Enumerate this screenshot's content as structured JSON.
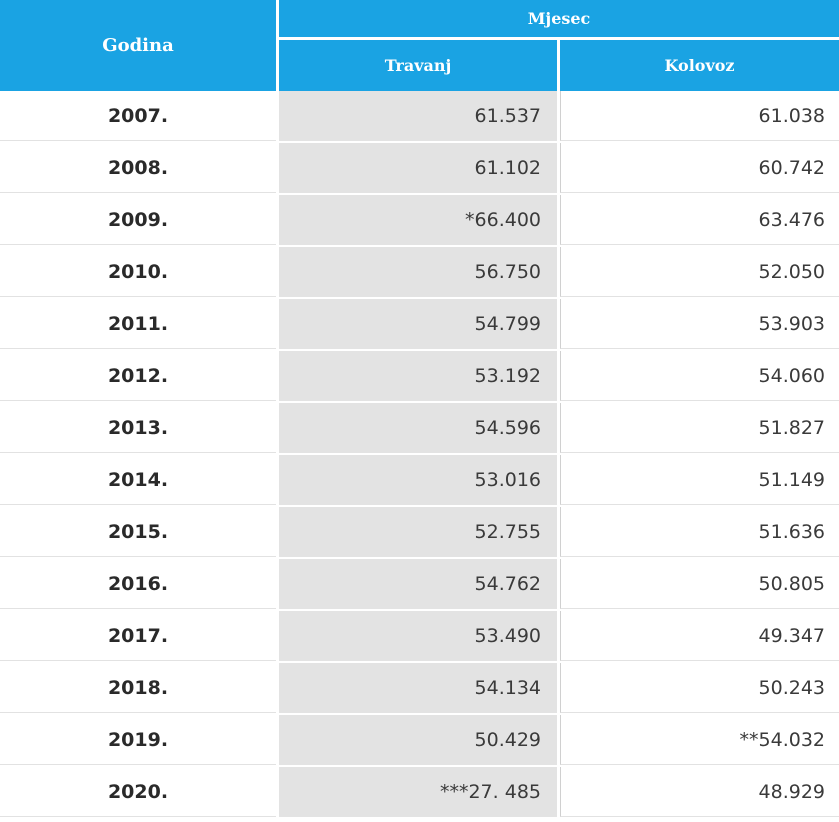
{
  "colors": {
    "header_bg": "#1aa3e3",
    "header_text": "#ffffff",
    "shaded_column_bg": "#e3e3e3",
    "text": "#3a3a3a"
  },
  "header": {
    "col_year": "Godina",
    "group": "Mjesec",
    "col_a": "Travanj",
    "col_b": "Kolovoz"
  },
  "rows": [
    {
      "year": "2007.",
      "travanj": "61.537",
      "kolovoz": "61.038"
    },
    {
      "year": "2008.",
      "travanj": "61.102",
      "kolovoz": "60.742"
    },
    {
      "year": "2009.",
      "travanj": "*66.400",
      "kolovoz": "63.476"
    },
    {
      "year": "2010.",
      "travanj": "56.750",
      "kolovoz": "52.050"
    },
    {
      "year": "2011.",
      "travanj": "54.799",
      "kolovoz": "53.903"
    },
    {
      "year": "2012.",
      "travanj": "53.192",
      "kolovoz": "54.060"
    },
    {
      "year": "2013.",
      "travanj": "54.596",
      "kolovoz": "51.827"
    },
    {
      "year": "2014.",
      "travanj": "53.016",
      "kolovoz": "51.149"
    },
    {
      "year": "2015.",
      "travanj": "52.755",
      "kolovoz": "51.636"
    },
    {
      "year": "2016.",
      "travanj": "54.762",
      "kolovoz": "50.805"
    },
    {
      "year": "2017.",
      "travanj": "53.490",
      "kolovoz": "49.347"
    },
    {
      "year": "2018.",
      "travanj": "54.134",
      "kolovoz": "50.243"
    },
    {
      "year": "2019.",
      "travanj": "50.429",
      "kolovoz": "**54.032"
    },
    {
      "year": "2020.",
      "travanj": "***27. 485",
      "kolovoz": "48.929"
    }
  ]
}
